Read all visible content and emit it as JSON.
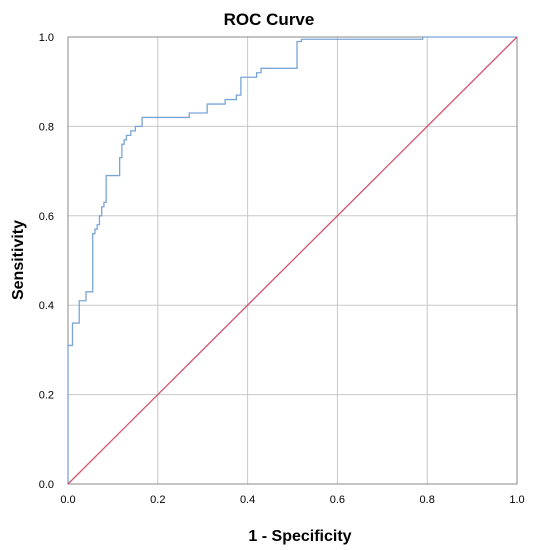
{
  "chart_data": {
    "type": "line",
    "title": "ROC Curve",
    "xlabel": "1 - Specificity",
    "ylabel": "Sensitivity",
    "xlim": [
      0,
      1
    ],
    "ylim": [
      0,
      1
    ],
    "x_ticks": [
      "0.0",
      "0.2",
      "0.4",
      "0.6",
      "0.8",
      "1.0"
    ],
    "y_ticks": [
      "0.0",
      "0.2",
      "0.4",
      "0.6",
      "0.8",
      "1.0"
    ],
    "grid": true,
    "colors": {
      "roc": "#7aa6d6",
      "reference": "#d2536e"
    },
    "series": [
      {
        "id": "roc",
        "x": [
          0.0,
          0.0,
          0.003,
          0.003,
          0.01,
          0.01,
          0.025,
          0.025,
          0.04,
          0.04,
          0.055,
          0.055,
          0.06,
          0.06,
          0.065,
          0.065,
          0.07,
          0.07,
          0.075,
          0.075,
          0.08,
          0.08,
          0.085,
          0.085,
          0.09,
          0.09,
          0.115,
          0.115,
          0.12,
          0.12,
          0.125,
          0.125,
          0.13,
          0.13,
          0.14,
          0.14,
          0.15,
          0.15,
          0.165,
          0.165,
          0.175,
          0.175,
          0.27,
          0.27,
          0.31,
          0.31,
          0.35,
          0.35,
          0.375,
          0.375,
          0.385,
          0.385,
          0.42,
          0.42,
          0.43,
          0.43,
          0.51,
          0.51,
          0.52,
          0.52,
          0.79,
          0.79,
          1.0
        ],
        "y": [
          0.0,
          0.31,
          0.31,
          0.31,
          0.31,
          0.36,
          0.36,
          0.41,
          0.41,
          0.43,
          0.43,
          0.56,
          0.56,
          0.57,
          0.57,
          0.58,
          0.58,
          0.6,
          0.6,
          0.62,
          0.62,
          0.63,
          0.63,
          0.69,
          0.69,
          0.69,
          0.69,
          0.73,
          0.73,
          0.76,
          0.76,
          0.77,
          0.77,
          0.78,
          0.78,
          0.79,
          0.79,
          0.8,
          0.8,
          0.82,
          0.82,
          0.82,
          0.82,
          0.83,
          0.83,
          0.85,
          0.85,
          0.86,
          0.86,
          0.87,
          0.87,
          0.91,
          0.91,
          0.92,
          0.92,
          0.93,
          0.93,
          0.99,
          0.99,
          0.995,
          0.995,
          1.0,
          1.0
        ]
      },
      {
        "id": "reference",
        "x": [
          0,
          1
        ],
        "y": [
          0,
          1
        ]
      }
    ]
  }
}
